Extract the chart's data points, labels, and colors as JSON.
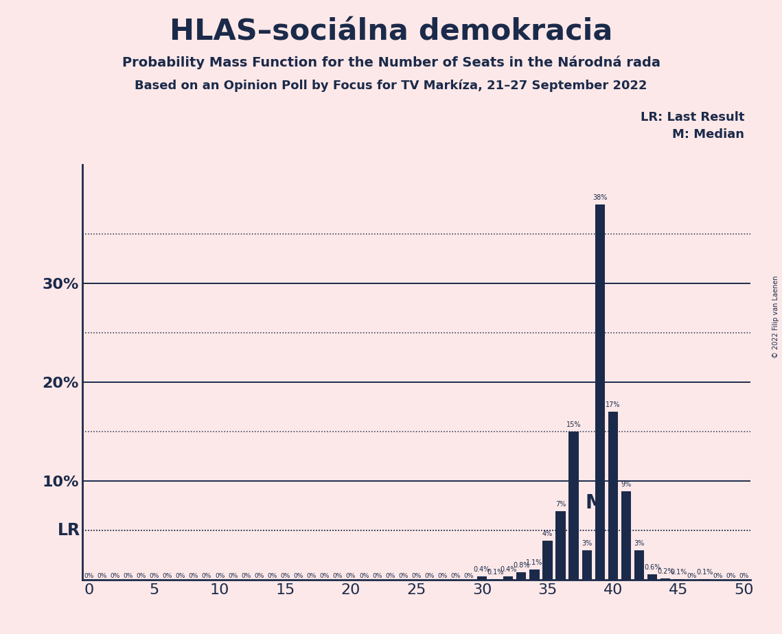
{
  "title": "HLAS–sociálna demokracia",
  "subtitle1": "Probability Mass Function for the Number of Seats in the Národná rada",
  "subtitle2": "Based on an Opinion Poll by Focus for TV Markíza, 21–27 September 2022",
  "copyright": "© 2022 Filip van Laenen",
  "background_color": "#fce8e8",
  "bar_color": "#1b2a4a",
  "text_color": "#1b2a4a",
  "x_min": -0.5,
  "x_max": 50.5,
  "y_min": 0,
  "y_max": 42,
  "solid_hlines": [
    10,
    20,
    30
  ],
  "dotted_hlines": [
    5,
    15,
    25,
    35
  ],
  "lr_value": 5.0,
  "median_seat": 39,
  "probs": [
    0,
    0,
    0,
    0,
    0,
    0,
    0,
    0,
    0,
    0,
    0,
    0,
    0,
    0,
    0,
    0,
    0,
    0,
    0,
    0,
    0,
    0,
    0,
    0,
    0,
    0,
    0,
    0,
    0,
    0,
    0.4,
    0.1,
    0.4,
    0.8,
    1.1,
    4,
    7,
    15,
    3,
    38,
    17,
    9,
    3,
    0.6,
    0.2,
    0.1,
    0,
    0.1,
    0,
    0,
    0
  ],
  "nonzero_label_map": {
    "30": "0.4%",
    "31": "0.1%",
    "32": "0.4%",
    "33": "0.8%",
    "34": "1.1%",
    "35": "4%",
    "36": "7%",
    "37": "15%",
    "38": "3%",
    "39": "38%",
    "40": "17%",
    "41": "9%",
    "42": "3%",
    "43": "0.6%",
    "44": "0.2%",
    "45": "0.1%",
    "47": "0.1%"
  },
  "zero_label_seats": [
    0,
    1,
    2,
    3,
    4,
    5,
    6,
    7,
    8,
    9,
    10,
    11,
    12,
    13,
    14,
    15,
    16,
    17,
    18,
    19,
    20,
    21,
    22,
    23,
    24,
    25,
    26,
    27,
    28,
    29,
    46,
    48,
    49,
    50
  ],
  "xticks": [
    0,
    5,
    10,
    15,
    20,
    25,
    30,
    35,
    40,
    45,
    50
  ],
  "yticks": [
    10,
    20,
    30
  ],
  "ytick_labels": [
    "10%",
    "20%",
    "30%"
  ]
}
